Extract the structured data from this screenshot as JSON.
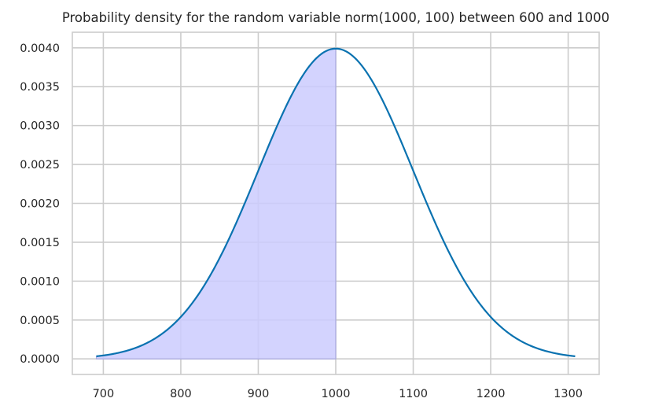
{
  "chart_data": {
    "type": "line",
    "title": "Probability density for the random variable norm(1000, 100) between 600 and 1000",
    "xlabel": "",
    "ylabel": "",
    "distribution": {
      "name": "norm",
      "mean": 1000,
      "std": 100
    },
    "x_range": [
      691,
      1309
    ],
    "shaded_interval": [
      600,
      1000
    ],
    "xlim": [
      660,
      1340
    ],
    "ylim": [
      -0.0002,
      0.0042
    ],
    "xticks": [
      700,
      800,
      900,
      1000,
      1100,
      1200,
      1300
    ],
    "yticks": [
      0.0,
      0.0005,
      0.001,
      0.0015,
      0.002,
      0.0025,
      0.003,
      0.0035,
      0.004
    ],
    "xtick_labels": [
      "700",
      "800",
      "900",
      "1000",
      "1100",
      "1200",
      "1300"
    ],
    "ytick_labels": [
      "0.0000",
      "0.0005",
      "0.0010",
      "0.0015",
      "0.0020",
      "0.0025",
      "0.0030",
      "0.0035",
      "0.0040"
    ],
    "grid": true,
    "colors": {
      "line": "#0a72b0",
      "fill": "#cbcbfe",
      "fill_edge": "#a9a9e0",
      "grid": "#cccccc",
      "spine": "#cccccc"
    }
  }
}
